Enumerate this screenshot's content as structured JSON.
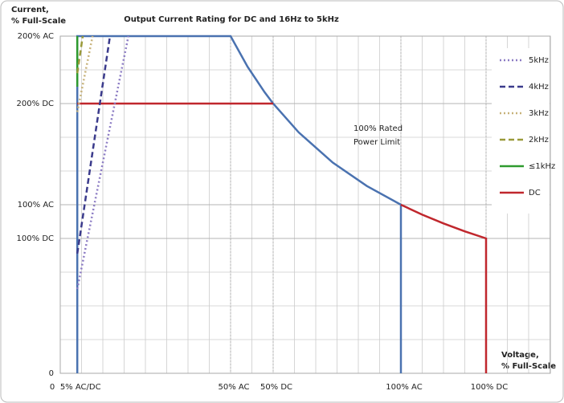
{
  "chart_data": {
    "type": "line",
    "title": "Output Current Rating for DC and 16Hz to 5kHz",
    "y_label": [
      "Current,",
      "% Full-Scale"
    ],
    "x_label": [
      "Voltage,",
      "% Full-Scale"
    ],
    "annotation": [
      "100% Rated",
      "Power Limit"
    ],
    "xlim": [
      0,
      125
    ],
    "ylim": [
      0,
      200
    ],
    "xticks": [
      0,
      {
        "value": 5,
        "label": "5% AC/DC"
      },
      {
        "value": 50,
        "label": "50% AC"
      },
      {
        "value": 62.5,
        "label": "50% DC"
      },
      {
        "value": 100,
        "label": "100% AC"
      },
      {
        "value": 125,
        "label": "100% DC"
      }
    ],
    "yticks": [
      0,
      {
        "value": 80,
        "label": "100% DC"
      },
      {
        "value": 100,
        "label": "100% AC"
      },
      {
        "value": 160,
        "label": "200% DC"
      },
      {
        "value": 200,
        "label": "200% AC"
      }
    ],
    "grid": true,
    "legend": "right",
    "series": [
      {
        "color": "#4a72b0",
        "dash": "solid",
        "x": [
          5,
          5,
          50,
          55,
          60,
          62.5,
          70,
          80,
          90,
          100,
          100
        ],
        "values": [
          0,
          200,
          200,
          181.8,
          166.7,
          160,
          142.9,
          125,
          111.1,
          100,
          0
        ]
      },
      {
        "name": "DC",
        "color": "#c0272d",
        "dash": "solid",
        "x": [
          5,
          62.5,
          null,
          100,
          106.25,
          112.5,
          118.75,
          125,
          125
        ],
        "values": [
          160,
          160,
          null,
          100,
          94.1,
          88.9,
          84.2,
          80,
          0
        ]
      },
      {
        "name": "≤1kHz",
        "color": "#2e9a2e",
        "dash": "solid",
        "x": [
          5,
          5
        ],
        "values": [
          170,
          200
        ]
      },
      {
        "name": "2kHz",
        "color": "#9a9a3a",
        "dash": "dashed",
        "x": [
          5,
          6.6
        ],
        "values": [
          178,
          200
        ]
      },
      {
        "name": "3kHz",
        "color": "#c7b27a",
        "dash": "dotted",
        "x": [
          5,
          9.5
        ],
        "values": [
          155,
          200
        ]
      },
      {
        "name": "4kHz",
        "color": "#3b3b8c",
        "dash": "dashed",
        "x": [
          5,
          14.6
        ],
        "values": [
          71,
          200
        ]
      },
      {
        "name": "5kHz",
        "color": "#8c7cc4",
        "dash": "dotted",
        "x": [
          5,
          20
        ],
        "values": [
          50,
          200
        ]
      }
    ]
  }
}
